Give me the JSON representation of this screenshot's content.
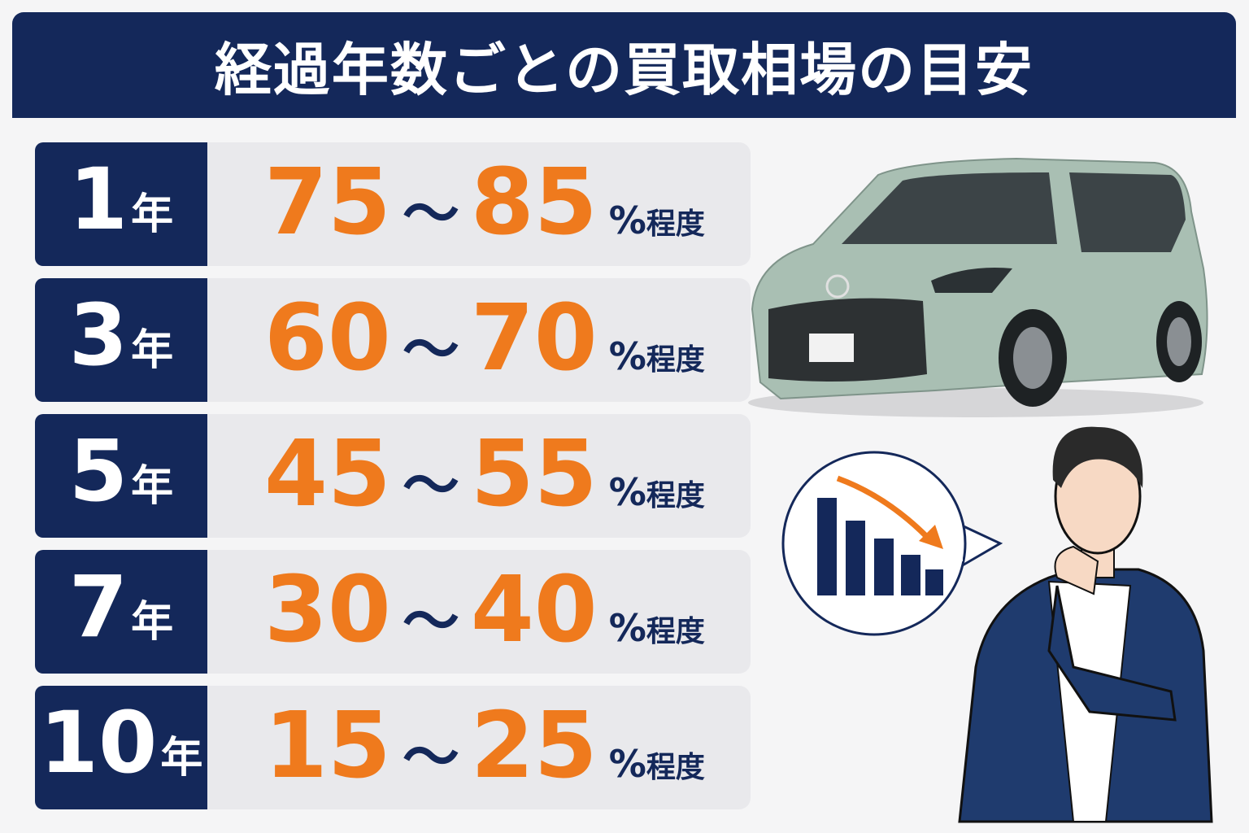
{
  "header": {
    "title": "経過年数ごとの買取相場の目安"
  },
  "rows": [
    {
      "years": 1,
      "unit": "年",
      "low": 75,
      "tilde": "～",
      "high": 85,
      "percent": "%",
      "suffix": "程度"
    },
    {
      "years": 3,
      "unit": "年",
      "low": 60,
      "tilde": "～",
      "high": 70,
      "percent": "%",
      "suffix": "程度"
    },
    {
      "years": 5,
      "unit": "年",
      "low": 45,
      "tilde": "～",
      "high": 55,
      "percent": "%",
      "suffix": "程度"
    },
    {
      "years": 7,
      "unit": "年",
      "low": 30,
      "tilde": "～",
      "high": 40,
      "percent": "%",
      "suffix": "程度"
    },
    {
      "years": 10,
      "unit": "年",
      "low": 15,
      "tilde": "～",
      "high": 25,
      "percent": "%",
      "suffix": "程度"
    }
  ]
}
